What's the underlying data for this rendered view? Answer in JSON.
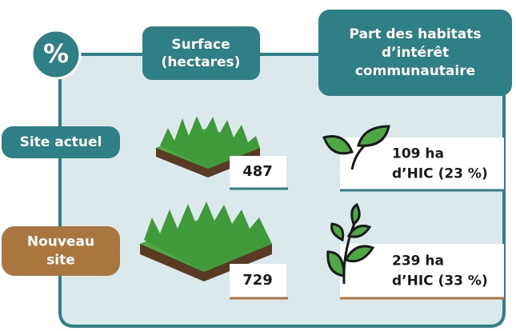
{
  "icon": {
    "label": "%"
  },
  "header": {
    "surface": [
      "Surface",
      "(hectares)"
    ],
    "habitats": [
      "Part des habitats",
      "d’intérêt",
      "communautaire"
    ]
  },
  "rows": [
    {
      "label": [
        "Site actuel"
      ],
      "surface": "487",
      "habitats": [
        "109 ha",
        "d’HIC (23 %)"
      ]
    },
    {
      "label": [
        "Nouveau",
        "site"
      ],
      "surface": "729",
      "habitats": [
        "239 ha",
        "d’HIC (33 %)"
      ]
    }
  ]
}
